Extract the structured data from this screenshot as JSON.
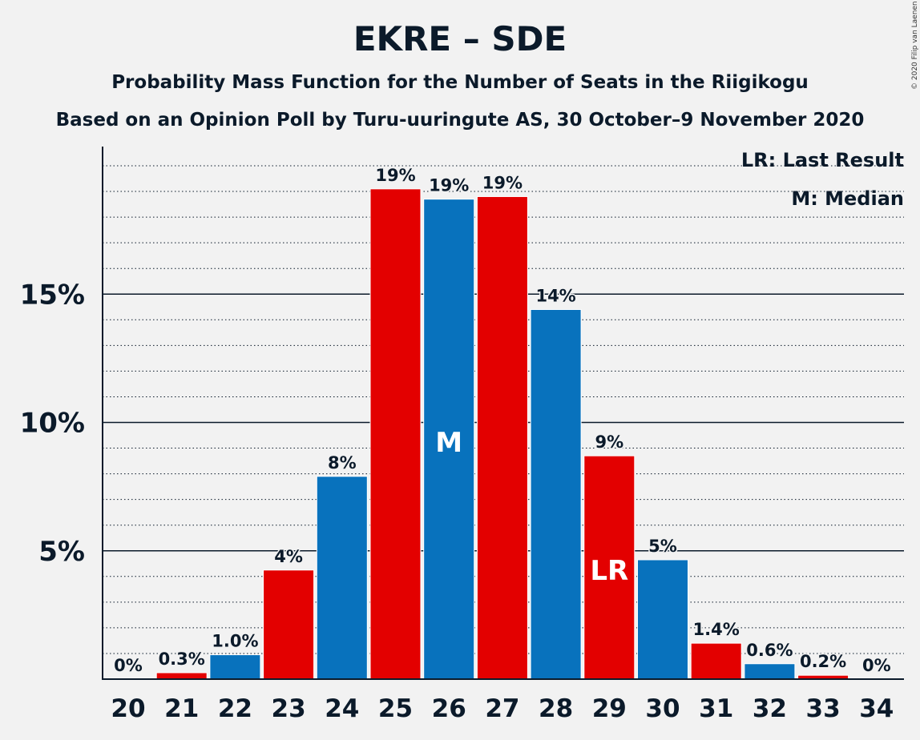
{
  "chart_data": {
    "type": "bar",
    "title": "EKRE – SDE",
    "subtitle": "Probability Mass Function for the Number of Seats in the Riigikogu",
    "subtitle2": "Based on an Opinion Poll by Turu-uuringute AS, 30 October–9 November 2020",
    "copyright": "© 2020 Filip van Laenen",
    "categories": [
      "20",
      "21",
      "22",
      "23",
      "24",
      "25",
      "26",
      "27",
      "28",
      "29",
      "30",
      "31",
      "32",
      "33",
      "34"
    ],
    "values": [
      0,
      0.25,
      0.95,
      4.25,
      7.9,
      19.1,
      18.7,
      18.8,
      14.4,
      8.7,
      4.65,
      1.4,
      0.6,
      0.15,
      0
    ],
    "value_labels": [
      "0%",
      "0.3%",
      "1.0%",
      "4%",
      "8%",
      "19%",
      "19%",
      "19%",
      "14%",
      "9%",
      "5%",
      "1.4%",
      "0.6%",
      "0.2%",
      "0%"
    ],
    "bar_colors": [
      "#e30000",
      "#e30000",
      "#0872bd",
      "#e30000",
      "#0872bd",
      "#e30000",
      "#0872bd",
      "#e30000",
      "#0872bd",
      "#e30000",
      "#0872bd",
      "#e30000",
      "#0872bd",
      "#e30000",
      "#0872bd"
    ],
    "ylim": [
      0,
      20.8
    ],
    "yticks": [
      5,
      10,
      15
    ],
    "ytick_labels": [
      "5%",
      "10%",
      "15%"
    ],
    "minor_grid_step": 1,
    "median_category": "26",
    "median_marker": "M",
    "last_result_category": "29",
    "last_result_marker": "LR",
    "legend": {
      "lr": "LR: Last Result",
      "m": "M: Median"
    }
  }
}
